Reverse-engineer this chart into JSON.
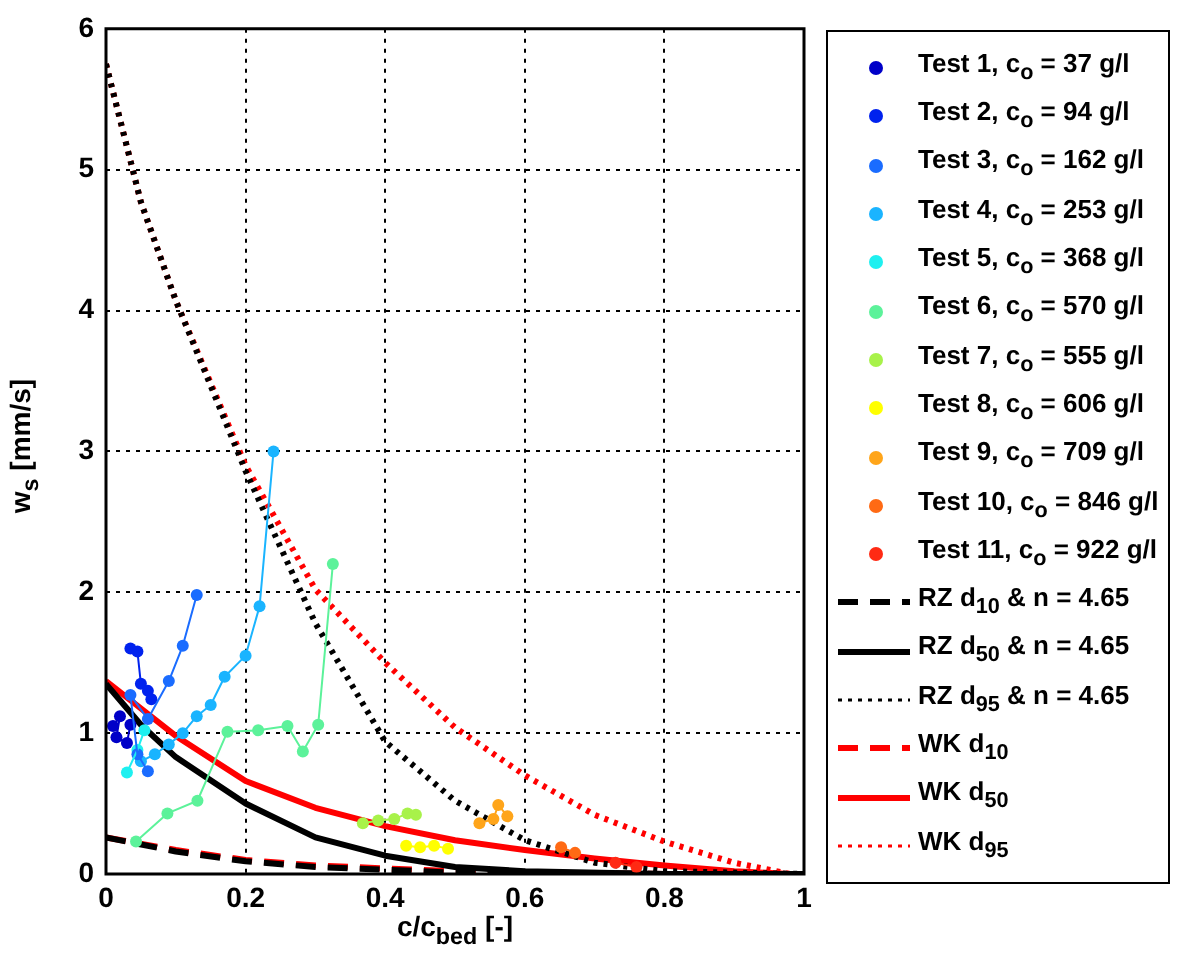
{
  "chart_data": {
    "type": "line",
    "xlabel": "c/c$_{bed}$ [-]",
    "ylabel": "w$_{s}$ [mm/s]",
    "xlim": [
      0,
      1
    ],
    "xticks": [
      0,
      0.2,
      0.4,
      0.6,
      0.8,
      1
    ],
    "ylim": [
      0,
      6
    ],
    "yticks": [
      0,
      1,
      2,
      3,
      4,
      5,
      6
    ],
    "grid": true,
    "legend": "right",
    "series": [
      {
        "name": "Test 1, c$_{o}$ = 37 g/l",
        "color": "#0000c8",
        "marker": "circle",
        "line_style": "solid",
        "x": [
          0.01,
          0.02,
          0.015,
          0.03,
          0.035
        ],
        "values": [
          1.05,
          1.12,
          0.97,
          0.93,
          1.06
        ]
      },
      {
        "name": "Test 2, c$_{o}$ = 94 g/l",
        "color": "#0022ee",
        "marker": "circle",
        "line_style": "solid",
        "x": [
          0.035,
          0.045,
          0.05,
          0.06,
          0.065
        ],
        "values": [
          1.6,
          1.58,
          1.35,
          1.3,
          1.24
        ]
      },
      {
        "name": "Test 3, c$_{o}$ = 162 g/l",
        "color": "#1a6cff",
        "marker": "circle",
        "line_style": "solid",
        "x": [
          0.06,
          0.045,
          0.035,
          0.06,
          0.09,
          0.11,
          0.13
        ],
        "values": [
          0.73,
          0.85,
          1.27,
          1.1,
          1.37,
          1.62,
          1.98
        ]
      },
      {
        "name": "Test 4, c$_{o}$ = 253 g/l",
        "color": "#1ab4ff",
        "marker": "circle",
        "line_style": "solid",
        "x": [
          0.05,
          0.07,
          0.09,
          0.11,
          0.13,
          0.15,
          0.17,
          0.2,
          0.22,
          0.24
        ],
        "values": [
          0.8,
          0.85,
          0.92,
          1.0,
          1.12,
          1.2,
          1.4,
          1.55,
          1.9,
          3.0
        ]
      },
      {
        "name": "Test 5, c$_{o}$ = 368 g/l",
        "color": "#1ef0f0",
        "marker": "circle",
        "line_style": "solid",
        "x": [
          0.03,
          0.045,
          0.055
        ],
        "values": [
          0.72,
          0.88,
          1.02
        ]
      },
      {
        "name": "Test 6, c$_{o}$ = 570 g/l",
        "color": "#5cf29a",
        "marker": "circle",
        "line_style": "solid",
        "x": [
          0.043,
          0.088,
          0.131,
          0.174,
          0.218,
          0.26,
          0.282,
          0.304,
          0.325
        ],
        "values": [
          0.23,
          0.43,
          0.52,
          1.01,
          1.02,
          1.05,
          0.87,
          1.06,
          2.2
        ]
      },
      {
        "name": "Test 7, c$_{o}$ = 555 g/l",
        "color": "#a8f24a",
        "marker": "circle",
        "line_style": "solid",
        "x": [
          0.368,
          0.39,
          0.413,
          0.432,
          0.444
        ],
        "values": [
          0.36,
          0.38,
          0.39,
          0.43,
          0.42
        ]
      },
      {
        "name": "Test 8, c$_{o}$ = 606 g/l",
        "color": "#ffff00",
        "marker": "circle",
        "line_style": "solid",
        "x": [
          0.43,
          0.45,
          0.47,
          0.49
        ],
        "values": [
          0.2,
          0.19,
          0.2,
          0.18
        ]
      },
      {
        "name": "Test 9, c$_{o}$ = 709 g/l",
        "color": "#ffa51a",
        "marker": "circle",
        "line_style": "solid",
        "x": [
          0.535,
          0.555,
          0.562,
          0.575
        ],
        "values": [
          0.36,
          0.39,
          0.49,
          0.41
        ]
      },
      {
        "name": "Test 10, c$_{o}$ = 846 g/l",
        "color": "#ff6a14",
        "marker": "circle",
        "line_style": "solid",
        "x": [
          0.652,
          0.672
        ],
        "values": [
          0.19,
          0.15
        ]
      },
      {
        "name": "Test 11, c$_{o}$ = 922 g/l",
        "color": "#ff2a14",
        "marker": "circle",
        "line_style": "solid",
        "x": [
          0.73,
          0.76
        ],
        "values": [
          0.08,
          0.05
        ]
      },
      {
        "name": "RZ d$_{10}$ & n = 4.65",
        "color": "#000000",
        "marker": "none",
        "line_style": "dashed",
        "x": [
          0,
          0.1,
          0.2,
          0.3,
          0.4,
          0.5,
          0.6,
          0.8,
          1
        ],
        "values": [
          0.26,
          0.16,
          0.09,
          0.05,
          0.03,
          0.01,
          0.01,
          0,
          0
        ]
      },
      {
        "name": "RZ d$_{50}$ & n = 4.65",
        "color": "#000000",
        "marker": "none",
        "line_style": "solid",
        "x": [
          0,
          0.05,
          0.1,
          0.2,
          0.3,
          0.4,
          0.5,
          0.6,
          0.8,
          1
        ],
        "values": [
          1.35,
          1.06,
          0.83,
          0.5,
          0.26,
          0.13,
          0.05,
          0.02,
          0,
          0
        ]
      },
      {
        "name": "RZ d$_{95}$ & n = 4.65",
        "color": "#000000",
        "marker": "none",
        "line_style": "dotted",
        "x": [
          0,
          0.05,
          0.1,
          0.2,
          0.3,
          0.4,
          0.5,
          0.6,
          0.7,
          0.8,
          1
        ],
        "values": [
          5.75,
          4.77,
          4.07,
          2.86,
          1.78,
          0.94,
          0.52,
          0.24,
          0.08,
          0.02,
          0
        ]
      },
      {
        "name": "WK d$_{10}$",
        "color": "#ff0000",
        "marker": "none",
        "line_style": "dashed",
        "x": [
          0,
          0.1,
          0.2,
          0.3,
          0.4,
          0.5,
          0.6,
          0.8,
          1
        ],
        "values": [
          0.26,
          0.17,
          0.1,
          0.06,
          0.04,
          0.02,
          0.01,
          0,
          0
        ]
      },
      {
        "name": "WK d$_{50}$",
        "color": "#ff0000",
        "marker": "none",
        "line_style": "solid",
        "x": [
          0,
          0.1,
          0.2,
          0.3,
          0.4,
          0.5,
          0.6,
          0.7,
          0.8,
          0.9,
          0.98
        ],
        "values": [
          1.37,
          0.98,
          0.66,
          0.47,
          0.34,
          0.24,
          0.17,
          0.11,
          0.06,
          0.02,
          0
        ]
      },
      {
        "name": "WK d$_{95}$",
        "color": "#ff0000",
        "marker": "none",
        "line_style": "dotted",
        "x": [
          0,
          0.05,
          0.1,
          0.2,
          0.3,
          0.4,
          0.5,
          0.6,
          0.7,
          0.8,
          0.9,
          0.98
        ],
        "values": [
          5.75,
          4.77,
          4.07,
          2.9,
          2.02,
          1.5,
          1.04,
          0.7,
          0.42,
          0.23,
          0.08,
          0
        ]
      }
    ]
  }
}
